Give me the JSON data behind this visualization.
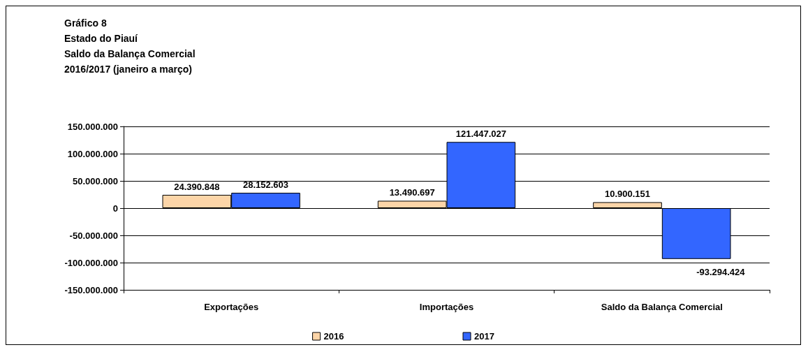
{
  "chart_data": {
    "type": "bar",
    "title": "Gráfico 8\nEstado do Piauí\nSaldo da Balança Comercial\n2016/2017 (janeiro a março)",
    "categories": [
      "Exportações",
      "Importações",
      "Saldo da Balança Comercial"
    ],
    "series": [
      {
        "name": "2016",
        "color": "#fcd5a8",
        "values": [
          24390848,
          13490697,
          10900151
        ],
        "value_labels": [
          "24.390.848",
          "13.490.697",
          "10.900.151"
        ]
      },
      {
        "name": "2017",
        "color": "#3366ff",
        "values": [
          28152603,
          121447027,
          -93294424
        ],
        "value_labels": [
          "28.152.603",
          "121.447.027",
          "-93.294.424"
        ]
      }
    ],
    "ylim": [
      -150000000,
      150000000
    ],
    "yticks": [
      {
        "value": -150000000,
        "label": "-150.000.000"
      },
      {
        "value": -100000000,
        "label": "-100.000.000"
      },
      {
        "value": -50000000,
        "label": "-50.000.000"
      },
      {
        "value": 0,
        "label": "0"
      },
      {
        "value": 50000000,
        "label": "50.000.000"
      },
      {
        "value": 100000000,
        "label": "100.000.000"
      },
      {
        "value": 150000000,
        "label": "150.000.000"
      }
    ],
    "grid": "y",
    "legend": "bottom"
  }
}
